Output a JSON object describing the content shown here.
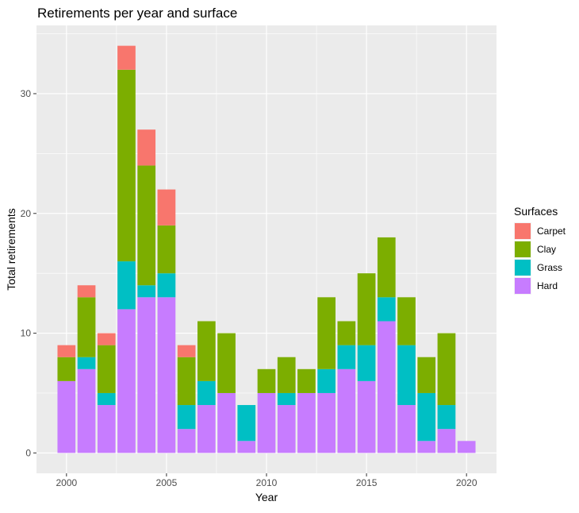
{
  "chart_data": {
    "type": "bar",
    "stacked": true,
    "title": "Retirements per year and surface",
    "xlabel": "Year",
    "ylabel": "Total retirements",
    "x": [
      2000,
      2001,
      2002,
      2003,
      2004,
      2005,
      2006,
      2007,
      2008,
      2009,
      2010,
      2011,
      2012,
      2013,
      2014,
      2015,
      2016,
      2017,
      2018,
      2019,
      2020
    ],
    "xlim": [
      1998.5,
      2021.5
    ],
    "ylim": [
      -1.7,
      35.7
    ],
    "x_ticks": [
      2000,
      2005,
      2010,
      2015,
      2020
    ],
    "y_ticks": [
      0,
      10,
      20,
      30
    ],
    "grid": true,
    "legend": {
      "title": "Surfaces",
      "position": "right"
    },
    "series": [
      {
        "name": "Hard",
        "color": "#C77CFF",
        "values": [
          6,
          7,
          4,
          12,
          13,
          13,
          2,
          4,
          5,
          1,
          5,
          4,
          5,
          5,
          7,
          6,
          11,
          4,
          1,
          2,
          1
        ]
      },
      {
        "name": "Grass",
        "color": "#00BFC4",
        "values": [
          0,
          1,
          1,
          4,
          1,
          2,
          2,
          2,
          0,
          3,
          0,
          1,
          0,
          2,
          2,
          3,
          2,
          5,
          4,
          2,
          0
        ]
      },
      {
        "name": "Clay",
        "color": "#7CAE00",
        "values": [
          2,
          5,
          4,
          16,
          10,
          4,
          4,
          5,
          5,
          0,
          2,
          3,
          2,
          6,
          2,
          6,
          5,
          4,
          3,
          6,
          0
        ]
      },
      {
        "name": "Carpet",
        "color": "#F8766D",
        "values": [
          1,
          1,
          1,
          2,
          3,
          3,
          1,
          0,
          0,
          0,
          0,
          0,
          0,
          0,
          0,
          0,
          0,
          0,
          0,
          0,
          0
        ]
      }
    ],
    "legend_order": [
      "Carpet",
      "Clay",
      "Grass",
      "Hard"
    ]
  },
  "style": {
    "panel_background": "#EBEBEB",
    "grid_major": "#FFFFFF",
    "tick_color": "#333333",
    "tick_label_color": "#4D4D4D"
  }
}
